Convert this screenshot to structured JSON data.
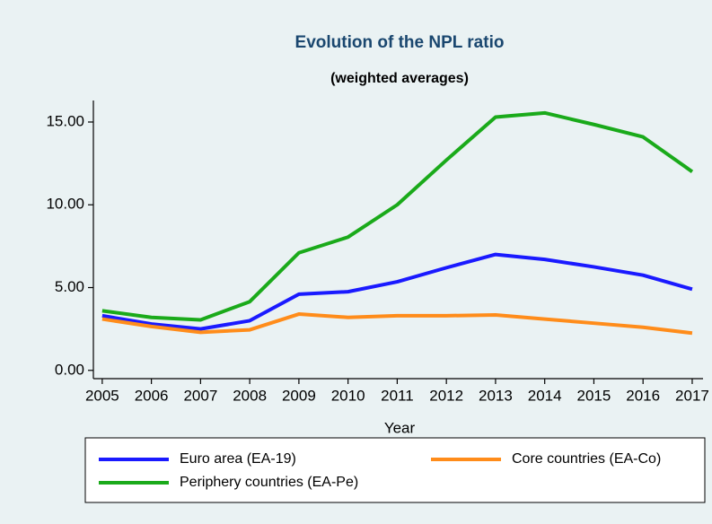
{
  "chart_data": {
    "type": "line",
    "title": "Evolution of the NPL ratio",
    "subtitle": "(weighted averages)",
    "x_label": "Year",
    "x": [
      2005,
      2006,
      2007,
      2008,
      2009,
      2010,
      2011,
      2012,
      2013,
      2014,
      2015,
      2016,
      2017
    ],
    "series": [
      {
        "name": "Euro area (EA-19)",
        "color": "#1a1aff",
        "values": [
          3.3,
          2.8,
          2.5,
          3.0,
          4.6,
          4.75,
          5.35,
          6.2,
          7.0,
          6.7,
          6.25,
          5.75,
          4.9
        ]
      },
      {
        "name": "Core countries (EA-Co)",
        "color": "#ff8c1a",
        "values": [
          3.1,
          2.65,
          2.3,
          2.45,
          3.4,
          3.2,
          3.3,
          3.3,
          3.35,
          3.1,
          2.85,
          2.6,
          2.25
        ]
      },
      {
        "name": "Periphery countries (EA-Pe)",
        "color": "#1aaa1a",
        "values": [
          3.6,
          3.2,
          3.05,
          4.15,
          7.1,
          8.05,
          10.0,
          12.7,
          15.3,
          15.55,
          14.85,
          14.1,
          12.0
        ]
      }
    ],
    "xlim": [
      2004.82,
      2017.22
    ],
    "xticks": [
      2005,
      2006,
      2007,
      2008,
      2009,
      2010,
      2011,
      2012,
      2013,
      2014,
      2015,
      2016,
      2017
    ],
    "ylim": [
      -0.5,
      16.3
    ],
    "yticks": [
      {
        "value": 0,
        "label": "0.00"
      },
      {
        "value": 5,
        "label": "5.00"
      },
      {
        "value": 10,
        "label": "10.00"
      },
      {
        "value": 15,
        "label": "15.00"
      }
    ],
    "grid": false,
    "legend_position": "bottom"
  }
}
